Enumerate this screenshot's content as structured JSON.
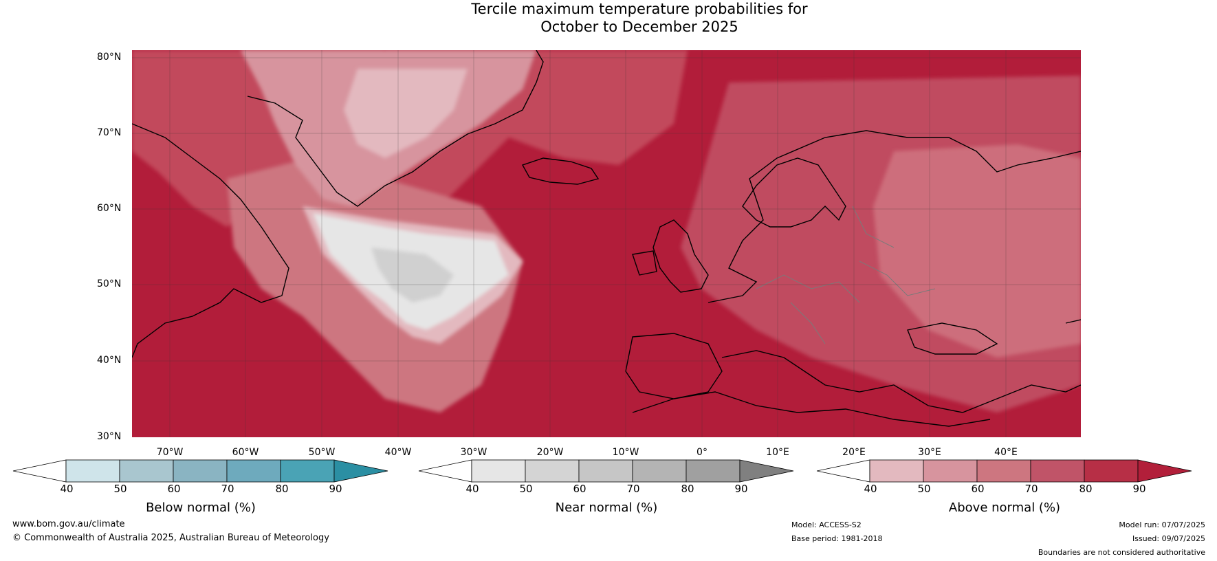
{
  "title_line1": "Tercile maximum temperature probabilities for",
  "title_line2": "October to December 2025",
  "lat_labels": [
    "80°N",
    "70°N",
    "60°N",
    "50°N",
    "40°N",
    "30°N"
  ],
  "lon_labels": [
    "70°W",
    "60°W",
    "50°W",
    "40°W",
    "30°W",
    "20°W",
    "10°W",
    "0°",
    "10°E",
    "20°E",
    "30°E",
    "40°E"
  ],
  "colorbars": [
    {
      "title": "Below normal (%)",
      "ticks": [
        "40",
        "50",
        "60",
        "70",
        "80",
        "90"
      ],
      "colors": [
        "#ffffff",
        "#cfe4ea",
        "#a9c6cf",
        "#8ab4c2",
        "#6eaabd",
        "#4aa3b5",
        "#2b8fa3"
      ]
    },
    {
      "title": "Near normal (%)",
      "ticks": [
        "40",
        "50",
        "60",
        "70",
        "80",
        "90"
      ],
      "colors": [
        "#ffffff",
        "#e6e6e6",
        "#d4d4d4",
        "#c6c6c6",
        "#b4b4b4",
        "#a0a0a0",
        "#808080"
      ]
    },
    {
      "title": "Above normal (%)",
      "ticks": [
        "40",
        "50",
        "60",
        "70",
        "80",
        "90"
      ],
      "colors": [
        "#ffffff",
        "#e3b9bf",
        "#d7949e",
        "#cd7680",
        "#c05468",
        "#b72f46",
        "#b21f3a"
      ]
    }
  ],
  "footer": {
    "website": "www.bom.gov.au/climate",
    "copyright": "© Commonwealth of Australia 2025, Australian Bureau of Meteorology",
    "model": "Model: ACCESS-S2",
    "base_period": "Base period: 1981-2018",
    "model_run": "Model run: 07/07/2025",
    "issued": "Issued: 09/07/2025",
    "disclaimer": "Boundaries are not considered authoritative"
  },
  "map_colors": {
    "ocean_above": "#b21d3a",
    "above_light": "#c9606f"
  }
}
